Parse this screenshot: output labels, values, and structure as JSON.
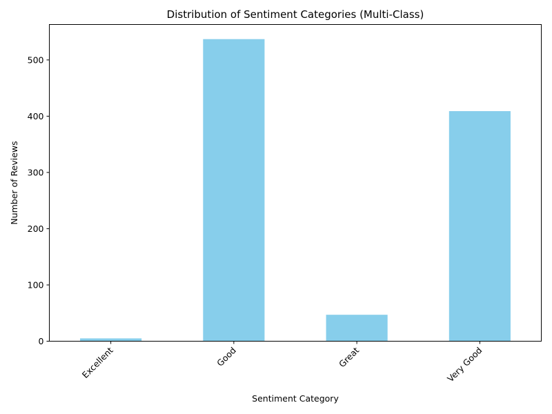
{
  "chart_data": {
    "type": "bar",
    "title": "Distribution of Sentiment Categories (Multi-Class)",
    "xlabel": "Sentiment Category",
    "ylabel": "Number of Reviews",
    "categories": [
      "Excellent",
      "Good",
      "Great",
      "Very Good"
    ],
    "values": [
      5,
      537,
      47,
      409
    ],
    "ylim": [
      0,
      563
    ],
    "yticks": [
      0,
      100,
      200,
      300,
      400,
      500
    ],
    "grid": false,
    "legend": "none",
    "bar_color": "#87CEEB"
  }
}
